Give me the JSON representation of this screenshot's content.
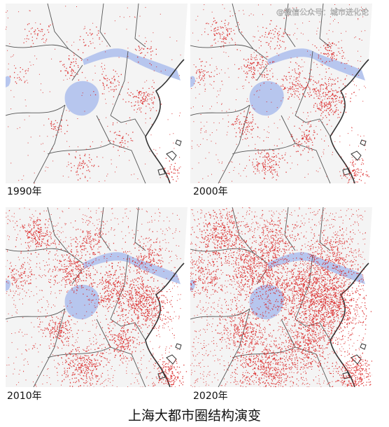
{
  "watermark": "@微信公众号：城市进化论",
  "panels": [
    {
      "label": "1990年"
    },
    {
      "label": "2000年"
    },
    {
      "label": "2010年"
    },
    {
      "label": "2020年"
    }
  ],
  "title": "上海大都市圈结构演变"
}
